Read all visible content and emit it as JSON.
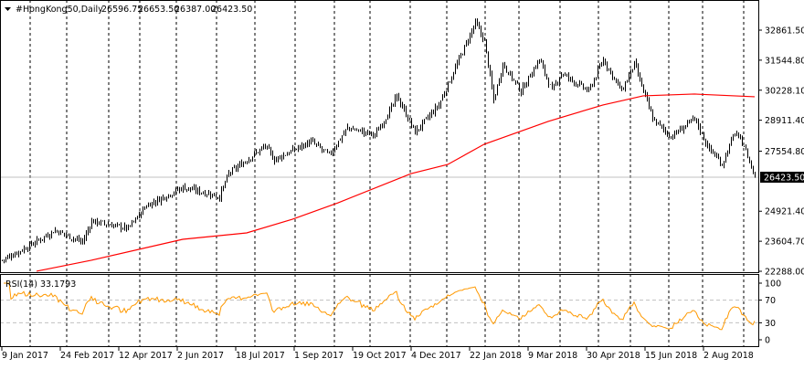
{
  "header": {
    "menu_icon": "triangle-down-icon",
    "symbol": "#HongKong50,Daily",
    "open": "26596.75",
    "high": "26653.50",
    "low": "26387.00",
    "close": "26423.50"
  },
  "price_axis": {
    "ticks": [
      "32861.50",
      "31544.80",
      "30228.10",
      "28911.40",
      "27554.80",
      "24921.40",
      "23604.70",
      "22288.00"
    ],
    "current_price_label": "26423.50"
  },
  "rsi": {
    "label": "RSI(14) 33.1793",
    "ticks": [
      "100",
      "70",
      "30",
      "0"
    ]
  },
  "time_axis": {
    "labels": [
      "9 Jan 2017",
      "24 Feb 2017",
      "12 Apr 2017",
      "2 Jun 2017",
      "18 Jul 2017",
      "1 Sep 2017",
      "19 Oct 2017",
      "4 Dec 2017",
      "22 Jan 2018",
      "9 Mar 2018",
      "30 Apr 2018",
      "15 Jun 2018",
      "2 Aug 2018"
    ]
  },
  "colors": {
    "bars": "#000000",
    "ma": "#ff0000",
    "rsi": "#ff9900",
    "grid": "#000000",
    "levels": "#c0c0c0"
  },
  "chart_data": [
    {
      "type": "ohlc",
      "title": "#HongKong50,Daily",
      "ylim": [
        22288.0,
        32861.5
      ],
      "bars_count": 413,
      "close_keypoints": [
        [
          0,
          22770
        ],
        [
          14,
          23370
        ],
        [
          29,
          24090
        ],
        [
          44,
          23570
        ],
        [
          49,
          24490
        ],
        [
          69,
          24170
        ],
        [
          79,
          25170
        ],
        [
          99,
          25970
        ],
        [
          119,
          25570
        ],
        [
          124,
          26570
        ],
        [
          144,
          27780
        ],
        [
          149,
          27180
        ],
        [
          169,
          27980
        ],
        [
          179,
          27380
        ],
        [
          189,
          28580
        ],
        [
          204,
          28260
        ],
        [
          214,
          29580
        ],
        [
          216,
          29980
        ],
        [
          226,
          28380
        ],
        [
          239,
          29580
        ],
        [
          249,
          31380
        ],
        [
          259,
          33180
        ],
        [
          264,
          32380
        ],
        [
          269,
          29780
        ],
        [
          274,
          31380
        ],
        [
          284,
          30180
        ],
        [
          294,
          31580
        ],
        [
          301,
          30180
        ],
        [
          306,
          30980
        ],
        [
          321,
          30180
        ],
        [
          329,
          31580
        ],
        [
          339,
          30180
        ],
        [
          346,
          31380
        ],
        [
          356,
          28980
        ],
        [
          366,
          28180
        ],
        [
          379,
          28980
        ],
        [
          386,
          27780
        ],
        [
          394,
          26980
        ],
        [
          401,
          28380
        ],
        [
          406,
          27780
        ],
        [
          412,
          26423.5
        ]
      ],
      "last_bar": {
        "open": 26596.75,
        "high": 26653.5,
        "low": 26387.0,
        "close": 26423.5
      }
    },
    {
      "type": "line",
      "name": "Moving Average (200)",
      "points": [
        [
          19,
          22290
        ],
        [
          49,
          22770
        ],
        [
          99,
          23690
        ],
        [
          134,
          23970
        ],
        [
          159,
          24570
        ],
        [
          184,
          25290
        ],
        [
          224,
          26570
        ],
        [
          244,
          26970
        ],
        [
          264,
          27860
        ],
        [
          299,
          28860
        ],
        [
          329,
          29580
        ],
        [
          351,
          29980
        ],
        [
          379,
          30060
        ],
        [
          412,
          29940
        ]
      ]
    },
    {
      "type": "line",
      "name": "RSI(14)",
      "ylim": [
        0,
        100
      ],
      "levels": [
        30,
        70
      ],
      "last_value": 33.1793
    }
  ]
}
